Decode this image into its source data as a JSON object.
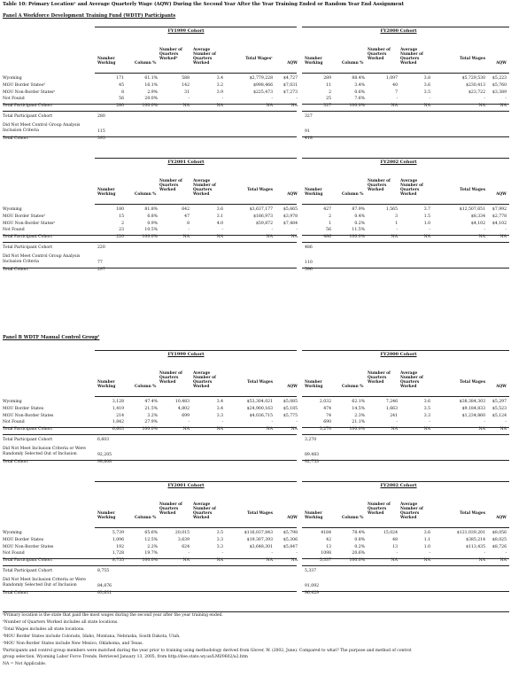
{
  "title": "Table 10: Primary Locationᵃ and Average Quarterly Wage (AQW) During the Second Year After the Year Training Ended or Random Year End Assignment",
  "panels": [
    {
      "header": "Panel A Workforce Development Training Fund (WDTF) Participants",
      "blocks": [
        {
          "left": {
            "cohort": "FY1999 Cohort",
            "headers": [
              "Number Working",
              "Column %",
              "Number of Quarters Workedᵇ",
              "Average Number of Quarters Worked",
              "Total Wagesᶜ",
              "AQW"
            ],
            "rows": [
              [
                "171",
                "61.1%",
                "588",
                "3.4",
                "$2,779,228",
                "$4,727"
              ],
              [
                "45",
                "16.1%",
                "142",
                "3.2",
                "$998,466",
                "$7,031"
              ],
              [
                "8",
                "2.9%",
                "31",
                "3.9",
                "$225,473",
                "$7,273"
              ],
              [
                "56",
                "20.0%",
                "-",
                "-",
                "-",
                "-"
              ],
              [
                "280",
                "100.0%",
                "NA",
                "NA",
                "NA",
                "NA"
              ]
            ],
            "totals": [
              "280",
              "115",
              "395"
            ]
          },
          "right": {
            "cohort": "FY2000 Cohort",
            "headers": [
              "Number Working",
              "Column %",
              "Number of Quarters Worked",
              "Average Number of Quarters Worked",
              "Total Wages",
              "AQW"
            ],
            "rows": [
              [
                "289",
                "88.4%",
                "1,097",
                "3.8",
                "$5,729,530",
                "$5,223"
              ],
              [
                "11",
                "3.4%",
                "40",
                "3.6",
                "$230,413",
                "$5,760"
              ],
              [
                "2",
                "0.6%",
                "7",
                "3.5",
                "$23,722",
                "$3,389"
              ],
              [
                "25",
                "7.6%",
                "-",
                "-",
                "-",
                "-"
              ],
              [
                "327",
                "100.0%",
                "NA",
                "NA",
                "NA",
                "NA"
              ]
            ],
            "totals": [
              "327",
              "91",
              "418"
            ]
          },
          "row_labels": [
            "Wyoming",
            "MOU Border Statesᵈ",
            "MOU Non-Border Statesᵉ",
            "Not Found",
            "Total Participant Cohort"
          ],
          "total_labels": [
            "Total Participant Cohort",
            "Did Not Meet Control Group Analysis Inclusion Criteria",
            "Total Cohort"
          ]
        },
        {
          "left": {
            "cohort": "FY2001 Cohort",
            "headers": [
              "Number Working",
              "Column %",
              "Number of Quarters Worked",
              "Average Number of Quarters Worked",
              "Total Wages",
              "AQW"
            ],
            "rows": [
              [
                "180",
                "81.8%",
                "642",
                "3.6",
                "$3,637,177",
                "$5,665"
              ],
              [
                "15",
                "6.8%",
                "47",
                "3.1",
                "$186,973",
                "$3,978"
              ],
              [
                "2",
                "0.9%",
                "8",
                "4.0",
                "$59,872",
                "$7,484"
              ],
              [
                "23",
                "10.5%",
                "-",
                "-",
                "-",
                "-"
              ],
              [
                "220",
                "100.0%",
                "NA",
                "NA",
                "NA",
                "NA"
              ]
            ],
            "totals": [
              "220",
              "77",
              "297"
            ]
          },
          "right": {
            "cohort": "FY2002 Cohort",
            "headers": [
              "Number Working",
              "Column %",
              "Number of Quarters Worked",
              "Average Number of Quarters Worked",
              "Total Wages",
              "AQW"
            ],
            "rows": [
              [
                "427",
                "87.9%",
                "1,565",
                "3.7",
                "$12,507,651",
                "$7,992"
              ],
              [
                "2",
                "0.4%",
                "3",
                "1.5",
                "$8,334",
                "$2,778"
              ],
              [
                "1",
                "0.2%",
                "1",
                "1.0",
                "$4,102",
                "$4,102"
              ],
              [
                "56",
                "11.5%",
                "-",
                "-",
                "-",
                "-"
              ],
              [
                "486",
                "100.0%",
                "NA",
                "NA",
                "NA",
                "NA"
              ]
            ],
            "totals": [
              "486",
              "110",
              "596"
            ]
          },
          "row_labels": [
            "Wyoming",
            "MOU Border Statesᵈ",
            "MOU Non-Border Statesᵉ",
            "Not Found",
            "Total Participant Cohort"
          ],
          "total_labels": [
            "Total Participant Cohort",
            "Did Not Meet Control Group Analysis Inclusion Criteria",
            "Total Cohort"
          ]
        }
      ]
    },
    {
      "header": "Panel B WDTF Manual Control Groupᶠ",
      "blocks": [
        {
          "left": {
            "cohort": "FY1999 Cohort",
            "headers": [
              "Number Working",
              "Column %",
              "Number of Quarters Worked",
              "Average Number of Quarters Worked",
              "Total Wages",
              "AQW"
            ],
            "rows": [
              [
                "3,128",
                "47.4%",
                "10,483",
                "3.4",
                "$53,304,021",
                "$5,085"
              ],
              [
                "1,419",
                "21.5%",
                "4,802",
                "3.4",
                "$24,900,163",
                "$5,185"
              ],
              [
                "214",
                "3.2%",
                "699",
                "3.3",
                "$4,036,715",
                "$5,775"
              ],
              [
                "1,842",
                "27.9%",
                "-",
                "-",
                "-",
                "-"
              ],
              [
                "6,603",
                "100.0%",
                "NA",
                "NA",
                "NA",
                "NA"
              ]
            ],
            "totals": [
              "6,603",
              "92,205",
              "98,808"
            ]
          },
          "right": {
            "cohort": "FY2000 Cohort",
            "headers": [
              "Number Working",
              "Column %",
              "Number of Quarters Worked",
              "Average Number of Quarters Worked",
              "Total Wages",
              "AQW"
            ],
            "rows": [
              [
                "2,032",
                "62.1%",
                "7,246",
                "3.6",
                "$38,384,303",
                "$5,297"
              ],
              [
                "474",
                "14.5%",
                "1,663",
                "3.5",
                "$9,184,833",
                "$5,523"
              ],
              [
                "74",
                "2.3%",
                "241",
                "3.3",
                "$1,234,860",
                "$5,124"
              ],
              [
                "690",
                "21.1%",
                "-",
                "-",
                "-",
                "-"
              ],
              [
                "3,270",
                "100.0%",
                "NA",
                "NA",
                "NA",
                "NA"
              ]
            ],
            "totals": [
              "3,270",
              "89,483",
              "92,753"
            ]
          },
          "row_labels": [
            "Wyoming",
            "MOU Border States",
            "MOU Non-Border States",
            "Not Found",
            "Total Participant Cohort"
          ],
          "total_labels": [
            "Total Participant Cohort",
            "Did Not Meet Inclusion Criteria or Were Randomly Selected Out of Inclusion",
            "Total Cohort"
          ]
        },
        {
          "left": {
            "cohort": "FY2001 Cohort",
            "headers": [
              "Number Working",
              "Column %",
              "Number of Quarters Worked",
              "Average Number of Quarters Worked",
              "Total Wages",
              "AQW"
            ],
            "rows": [
              [
                "5,739",
                "65.6%",
                "20,015",
                "3.5",
                "$116,037,843",
                "$5,798"
              ],
              [
                "1,096",
                "12.5%",
                "3,639",
                "3.3",
                "$19,307,393",
                "$5,306"
              ],
              [
                "192",
                "2.2%",
                "624",
                "3.3",
                "$3,648,301",
                "$5,847"
              ],
              [
                "1,728",
                "19.7%",
                "-",
                "-",
                "-",
                "-"
              ],
              [
                "8,755",
                "100.0%",
                "NA",
                "NA",
                "NA",
                "NA"
              ]
            ],
            "totals": [
              "8,755",
              "84,876",
              "93,631"
            ]
          },
          "right": {
            "cohort": "FY2002 Cohort",
            "headers": [
              "Number Working",
              "Column %",
              "Number of Quarters Worked",
              "Average Number of Quarters Worked",
              "Total Wages",
              "AQW"
            ],
            "rows": [
              [
                "4184",
                "78.4%",
                "15,024",
                "3.6",
                "$121,039,201",
                "$8,056"
              ],
              [
                "42",
                "0.8%",
                "48",
                "1.1",
                "$385,214",
                "$8,025"
              ],
              [
                "13",
                "0.2%",
                "13",
                "1.0",
                "$113,435",
                "$8,726"
              ],
              [
                "1098",
                "20.6%",
                "-",
                "-",
                "-",
                "-"
              ],
              [
                "5,337",
                "100.0%",
                "NA",
                "NA",
                "NA",
                "NA"
              ]
            ],
            "totals": [
              "5,337",
              "91,092",
              "96,429"
            ]
          },
          "row_labels": [
            "Wyoming",
            "MOU Border States",
            "MOU Non-Border States",
            "Not Found",
            "Total Participant Cohort"
          ],
          "total_labels": [
            "Total Participant Cohort",
            "Did Not Meet Inclusion Criteria or Were Randomly Selected Out of Inclusion",
            "Total Cohort"
          ]
        }
      ]
    }
  ],
  "footnotes": [
    "ᵃPrimary location is the state that paid the most wages during the second year after the year training ended.",
    "ᵇNumber of Quarters Worked includes all state locations.",
    "ᶜTotal Wages includes all state locations.",
    "ᵈMOU Border States include Colorado, Idaho, Montana, Nebraska, South Dakota, Utah.",
    "ᵉMOU Non-Border States include New Mexico, Oklahoma, and Texas.",
    "ᶠParticipants and control group members were matched during the year prior to training using methodology derived from Glover, W. (2002, June). Compared to what? The purpose and method of control",
    "group selection. Wyoming Labor Force Trends. Retrieved January 13, 2005, from http://doe.state.wy.us/LMI/0602/a2.htm",
    "NA = Not Applicable."
  ]
}
